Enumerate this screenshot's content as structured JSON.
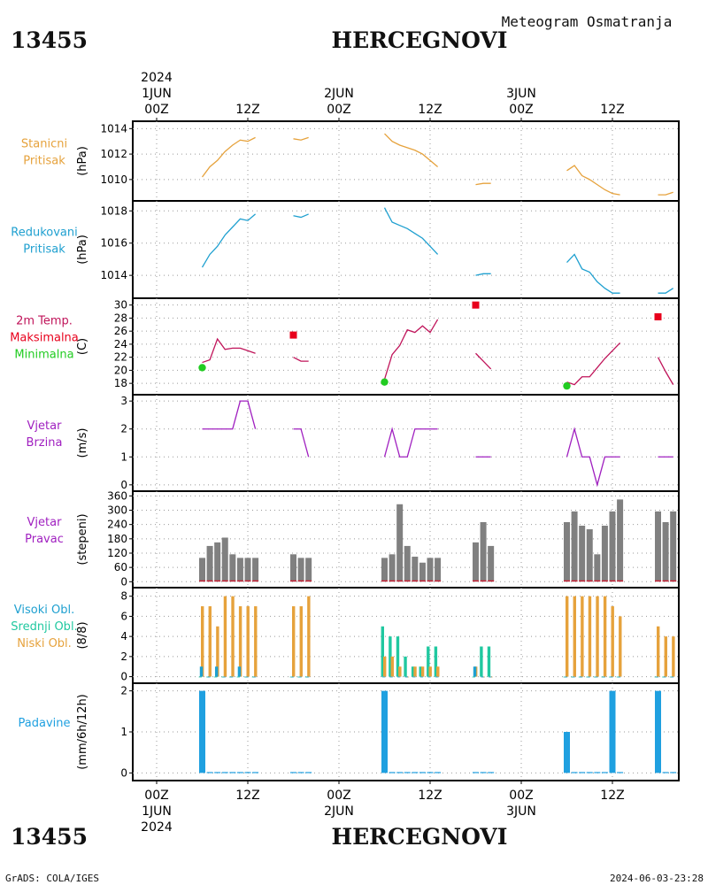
{
  "header": {
    "station_id": "13455",
    "station_name": "HERCEGNOVI",
    "product": "Meteogram Osmatranja"
  },
  "footer": {
    "station_id": "13455",
    "station_name": "HERCEGNOVI",
    "credit": "GrADS: COLA/IGES",
    "generated": "2024-06-03-23:28"
  },
  "time_axis": {
    "hours_start": 0,
    "hours_end": 72,
    "ticks": [
      {
        "h": 0,
        "label": "00Z",
        "day": "1JUN",
        "year": "2024"
      },
      {
        "h": 12,
        "label": "12Z",
        "day": "",
        "year": ""
      },
      {
        "h": 24,
        "label": "00Z",
        "day": "2JUN",
        "year": ""
      },
      {
        "h": 36,
        "label": "12Z",
        "day": "",
        "year": ""
      },
      {
        "h": 48,
        "label": "00Z",
        "day": "3JUN",
        "year": ""
      },
      {
        "h": 60,
        "label": "12Z",
        "day": "",
        "year": ""
      }
    ]
  },
  "colors": {
    "pressure": "#e6a23c",
    "redpressure": "#1fa0d0",
    "tmax": "#e8001c",
    "tmin": "#22cc22",
    "temp": "#c0145a",
    "wind": "#a020c0",
    "winddir": "#808080",
    "cloud_high": "#1fa0d0",
    "cloud_mid": "#20c8a0",
    "cloud_low": "#e6a23c",
    "precip": "#1fa0e0"
  },
  "chart_data": [
    {
      "type": "line",
      "id": "station_pressure",
      "label": [
        "Stanicni",
        "Pritisak"
      ],
      "ylabel": "(hPa)",
      "yticks": [
        1010,
        1012,
        1014
      ],
      "ylim": [
        1008.6,
        1014.3
      ],
      "series": [
        {
          "x": [
            6,
            7,
            8,
            9,
            10,
            11,
            12,
            13
          ],
          "y": [
            1010.2,
            1011.0,
            1011.5,
            1012.2,
            1012.7,
            1013.1,
            1013.0,
            1013.3
          ]
        },
        {
          "x": [
            18,
            19,
            20
          ],
          "y": [
            1013.2,
            1013.1,
            1013.3
          ]
        },
        {
          "x": [
            30,
            31,
            32,
            33,
            34,
            35,
            36,
            37
          ],
          "y": [
            1013.6,
            1013.0,
            1012.7,
            1012.5,
            1012.3,
            1012.0,
            1011.5,
            1011.0
          ]
        },
        {
          "x": [
            42,
            43,
            44
          ],
          "y": [
            1009.6,
            1009.7,
            1009.7
          ]
        },
        {
          "x": [
            54,
            55,
            56,
            57,
            58,
            59,
            60,
            61
          ],
          "y": [
            1010.7,
            1011.1,
            1010.3,
            1010.0,
            1009.6,
            1009.2,
            1008.9,
            1008.8
          ]
        },
        {
          "x": [
            66,
            67,
            68
          ],
          "y": [
            1008.8,
            1008.8,
            1009.0
          ]
        }
      ]
    },
    {
      "type": "line",
      "id": "reduced_pressure",
      "label": [
        "Redukovani",
        "Pritisak"
      ],
      "ylabel": "(hPa)",
      "yticks": [
        1014,
        1016,
        1018
      ],
      "ylim": [
        1012.8,
        1018.4
      ],
      "series": [
        {
          "x": [
            6,
            7,
            8,
            9,
            10,
            11,
            12,
            13
          ],
          "y": [
            1014.5,
            1015.3,
            1015.8,
            1016.5,
            1017.0,
            1017.5,
            1017.4,
            1017.8
          ]
        },
        {
          "x": [
            18,
            19,
            20
          ],
          "y": [
            1017.7,
            1017.6,
            1017.8
          ]
        },
        {
          "x": [
            30,
            31,
            32,
            33,
            34,
            35,
            36,
            37
          ],
          "y": [
            1018.2,
            1017.3,
            1017.1,
            1016.9,
            1016.6,
            1016.3,
            1015.8,
            1015.3
          ]
        },
        {
          "x": [
            42,
            43,
            44
          ],
          "y": [
            1014.0,
            1014.1,
            1014.1
          ]
        },
        {
          "x": [
            54,
            55,
            56,
            57,
            58,
            59,
            60,
            61
          ],
          "y": [
            1014.8,
            1015.3,
            1014.4,
            1014.2,
            1013.6,
            1013.2,
            1012.9,
            1012.9
          ]
        },
        {
          "x": [
            66,
            67,
            68
          ],
          "y": [
            1012.9,
            1012.9,
            1013.2
          ]
        }
      ]
    },
    {
      "type": "line",
      "id": "temperature",
      "label": [
        "2m Temp.",
        "Maksimalna",
        "Minimalna"
      ],
      "ylabel": "(C)",
      "yticks": [
        18,
        20,
        22,
        24,
        26,
        28,
        30
      ],
      "ylim": [
        16.8,
        30.5
      ],
      "series": [
        {
          "x": [
            6,
            7,
            8,
            9,
            10,
            11,
            12,
            13
          ],
          "y": [
            21.2,
            21.6,
            24.8,
            23.2,
            23.4,
            23.4,
            23.0,
            22.6
          ]
        },
        {
          "x": [
            18,
            19,
            20
          ],
          "y": [
            22.0,
            21.4,
            21.4
          ]
        },
        {
          "x": [
            30,
            31,
            32,
            33,
            34,
            35,
            36,
            37
          ],
          "y": [
            18.6,
            22.4,
            23.8,
            26.2,
            25.8,
            26.8,
            25.8,
            27.8
          ]
        },
        {
          "x": [
            42,
            43,
            44
          ],
          "y": [
            22.6,
            21.4,
            20.2
          ]
        },
        {
          "x": [
            54,
            55,
            56,
            57,
            58,
            59,
            60,
            61
          ],
          "y": [
            18.2,
            17.8,
            19.0,
            19.0,
            20.4,
            21.8,
            23.0,
            24.2
          ]
        },
        {
          "x": [
            66,
            67,
            68
          ],
          "y": [
            22.0,
            19.8,
            17.8
          ]
        }
      ],
      "max_points": [
        {
          "x": 18,
          "y": 25.4
        },
        {
          "x": 42,
          "y": 30.0
        },
        {
          "x": 66,
          "y": 28.2
        }
      ],
      "min_points": [
        {
          "x": 6,
          "y": 20.4
        },
        {
          "x": 30,
          "y": 18.2
        },
        {
          "x": 54,
          "y": 17.6
        }
      ]
    },
    {
      "type": "line",
      "id": "wind_speed",
      "label": [
        "Vjetar",
        "Brzina"
      ],
      "ylabel": "(m/s)",
      "yticks": [
        0,
        1,
        2,
        3
      ],
      "ylim": [
        -0.1,
        3.1
      ],
      "series": [
        {
          "x": [
            6,
            7,
            8,
            9,
            10,
            11,
            12,
            13
          ],
          "y": [
            2,
            2,
            2,
            2,
            2,
            3,
            3,
            2
          ]
        },
        {
          "x": [
            18,
            19,
            20
          ],
          "y": [
            2,
            2,
            1
          ]
        },
        {
          "x": [
            30,
            31,
            32,
            33,
            34,
            35,
            36,
            37
          ],
          "y": [
            1,
            2,
            1,
            1,
            2,
            2,
            2,
            2
          ]
        },
        {
          "x": [
            42,
            43,
            44
          ],
          "y": [
            1,
            1,
            1
          ]
        },
        {
          "x": [
            54,
            55,
            56,
            57,
            58,
            59,
            60,
            61
          ],
          "y": [
            1,
            2,
            1,
            1,
            0,
            1,
            1,
            1
          ]
        },
        {
          "x": [
            66,
            67,
            68
          ],
          "y": [
            1,
            1,
            1
          ]
        }
      ]
    },
    {
      "type": "bar",
      "id": "wind_direction",
      "label": [
        "Vjetar",
        "Pravac"
      ],
      "ylabel": "(stepeni)",
      "yticks": [
        0,
        60,
        120,
        180,
        240,
        300,
        360
      ],
      "ylim": [
        -10,
        365
      ],
      "x": [
        6,
        7,
        8,
        9,
        10,
        11,
        12,
        13,
        18,
        19,
        20,
        30,
        31,
        32,
        33,
        34,
        35,
        36,
        37,
        42,
        43,
        44,
        54,
        55,
        56,
        57,
        58,
        59,
        60,
        61,
        66,
        67,
        68
      ],
      "values": [
        100,
        150,
        165,
        185,
        115,
        100,
        100,
        100,
        115,
        100,
        100,
        100,
        115,
        325,
        150,
        105,
        80,
        100,
        100,
        165,
        250,
        150,
        250,
        295,
        235,
        220,
        115,
        235,
        295,
        345,
        295,
        250,
        295
      ]
    },
    {
      "type": "bar",
      "id": "cloud_cover",
      "label": [
        "Visoki Obl.",
        "Srednji Obl.",
        "Niski Obl."
      ],
      "ylabel": "(8/8)",
      "yticks": [
        0,
        2,
        4,
        6,
        8
      ],
      "ylim": [
        -0.3,
        8.5
      ],
      "x": [
        6,
        7,
        8,
        9,
        10,
        11,
        12,
        13,
        18,
        19,
        20,
        30,
        31,
        32,
        33,
        34,
        35,
        36,
        37,
        42,
        43,
        44,
        54,
        55,
        56,
        57,
        58,
        59,
        60,
        61,
        66,
        67,
        68
      ],
      "series": [
        {
          "name": "Visoki Obl.",
          "values": [
            1,
            0,
            1,
            0,
            0,
            1,
            0,
            0,
            0,
            0,
            0,
            0,
            0,
            0,
            0,
            0,
            0,
            0,
            0,
            1,
            0,
            0,
            0,
            0,
            0,
            0,
            0,
            0,
            0,
            0,
            0,
            0,
            0
          ]
        },
        {
          "name": "Srednji Obl.",
          "values": [
            0,
            0,
            0,
            0,
            0,
            0,
            0,
            0,
            0,
            0,
            0,
            5,
            4,
            4,
            2,
            1,
            1,
            3,
            3,
            0,
            3,
            3,
            0,
            0,
            0,
            0,
            0,
            0,
            0,
            0,
            0,
            0,
            0
          ]
        },
        {
          "name": "Niski Obl.",
          "values": [
            7,
            7,
            5,
            8,
            8,
            7,
            7,
            7,
            7,
            7,
            8,
            2,
            2,
            1,
            0,
            1,
            1,
            1,
            1,
            1,
            0,
            0,
            8,
            8,
            8,
            8,
            8,
            8,
            7,
            6,
            5,
            4,
            4
          ]
        }
      ]
    },
    {
      "type": "bar",
      "id": "precipitation",
      "label": [
        "Padavine"
      ],
      "ylabel": "(mm/6h/12h)",
      "yticks": [
        0,
        1,
        2
      ],
      "ylim": [
        -0.1,
        2.1
      ],
      "x": [
        6,
        7,
        8,
        9,
        10,
        11,
        12,
        13,
        18,
        19,
        20,
        30,
        31,
        32,
        33,
        34,
        35,
        36,
        37,
        42,
        43,
        44,
        54,
        55,
        56,
        57,
        58,
        59,
        60,
        61,
        66,
        67,
        68
      ],
      "values": [
        2,
        0,
        0,
        0,
        0,
        0,
        0,
        0,
        0,
        0,
        0,
        2,
        0,
        0,
        0,
        0,
        0,
        0,
        0,
        0,
        0,
        0,
        1,
        0,
        0,
        0,
        0,
        0,
        2,
        0,
        2,
        0,
        0
      ]
    }
  ]
}
